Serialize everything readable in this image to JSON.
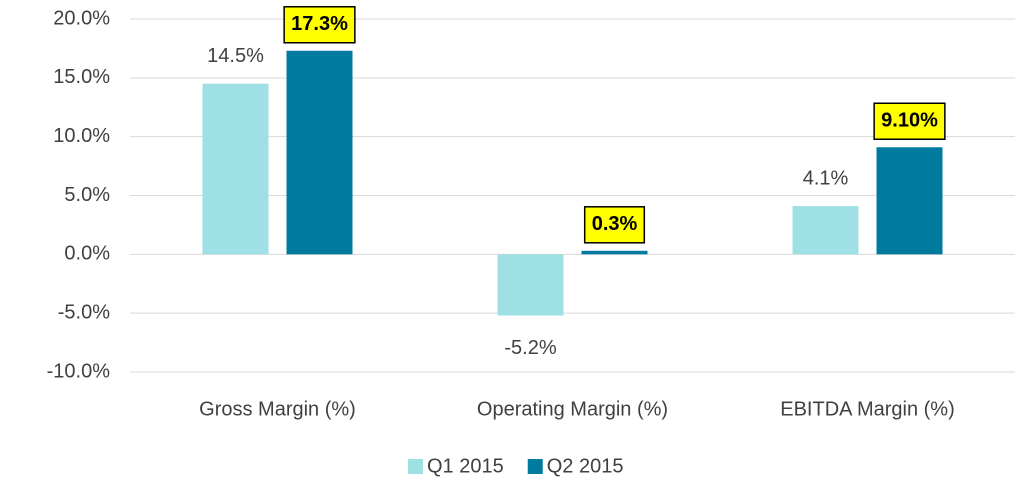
{
  "chart_data": {
    "type": "bar",
    "categories": [
      "Gross Margin (%)",
      "Operating Margin (%)",
      "EBITDA Margin (%)"
    ],
    "series": [
      {
        "name": "Q1 2015",
        "color": "#9ee0e4",
        "values": [
          14.5,
          -5.2,
          4.1
        ],
        "value_labels": [
          "14.5%",
          "-5.2%",
          "4.1%"
        ],
        "highlight_labels": false
      },
      {
        "name": "Q2 2015",
        "color": "#007b9f",
        "values": [
          17.3,
          0.3,
          9.1
        ],
        "value_labels": [
          "17.3%",
          "0.3%",
          "9.10%"
        ],
        "highlight_labels": true
      }
    ],
    "ylim": [
      -10,
      20
    ],
    "yticks": [
      {
        "value": -10,
        "label": "-10.0%"
      },
      {
        "value": -5,
        "label": "-5.0%"
      },
      {
        "value": 0,
        "label": "0.0%"
      },
      {
        "value": 5,
        "label": "5.0%"
      },
      {
        "value": 10,
        "label": "10.0%"
      },
      {
        "value": 15,
        "label": "15.0%"
      },
      {
        "value": 20,
        "label": "20.0%"
      }
    ],
    "grid": true,
    "legend": "bottom"
  }
}
